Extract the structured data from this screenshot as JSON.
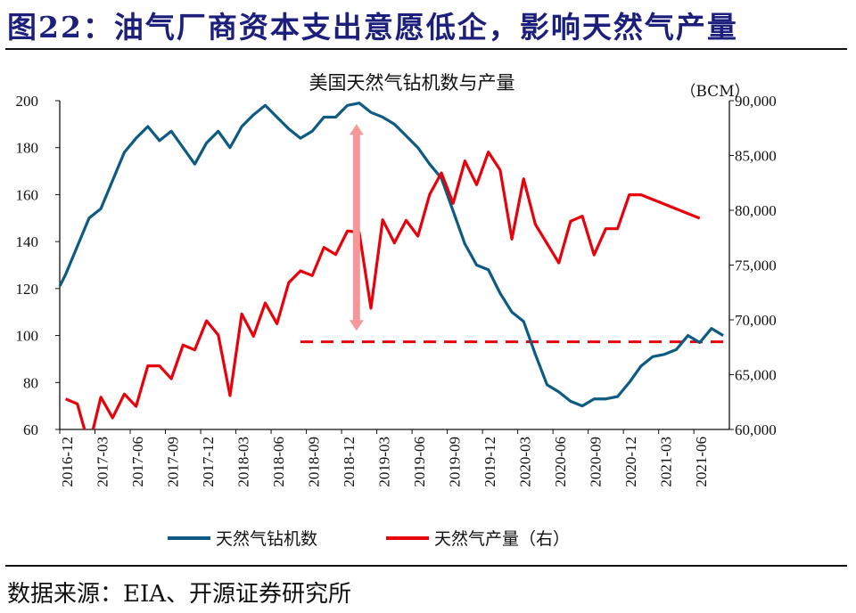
{
  "figure_title": "图22：油气厂商资本支出意愿低企，影响天然气产量",
  "source": "数据来源：EIA、开源证券研究所",
  "colors": {
    "rigs": "#0d5b82",
    "production": "#e8000b",
    "arrow": "#f4989a",
    "title": "#1c1f7c"
  },
  "chart_data": {
    "type": "line",
    "title": "美国天然气钻机数与产量",
    "right_unit": "（BCM）",
    "start_month": "2016-12",
    "x_tick_labels": [
      "2016-12",
      "2017-03",
      "2017-06",
      "2017-09",
      "2017-12",
      "2018-03",
      "2018-06",
      "2018-09",
      "2018-12",
      "2019-03",
      "2019-06",
      "2019-09",
      "2019-12",
      "2020-03",
      "2020-06",
      "2020-09",
      "2020-12",
      "2021-03",
      "2021-06"
    ],
    "y_left": {
      "min": 60,
      "max": 200,
      "step": 20,
      "tick_labels": [
        "60",
        "80",
        "100",
        "120",
        "140",
        "160",
        "180",
        "200"
      ]
    },
    "y_right": {
      "min": 60000,
      "max": 90000,
      "step": 5000,
      "tick_labels": [
        "60,000",
        "65,000",
        "70,000",
        "75,000",
        "80,000",
        "85,000",
        "90,000"
      ]
    },
    "grid": false,
    "legend_position": "bottom",
    "series": [
      {
        "name": "天然气钻机数",
        "axis": "left",
        "values": [
          126,
          138,
          150,
          154,
          166,
          178,
          184,
          189,
          183,
          187,
          180,
          173,
          182,
          187,
          180,
          189,
          194,
          198,
          193,
          188,
          184,
          187,
          193,
          193,
          198,
          199,
          195,
          193,
          190,
          185,
          180,
          173,
          167,
          153,
          139,
          130,
          128,
          118,
          110,
          106,
          92,
          79,
          76,
          72,
          70,
          73,
          73,
          74,
          80,
          87,
          91,
          92,
          94,
          100,
          97,
          103,
          100
        ]
      },
      {
        "name": "天然气产量（右）",
        "axis": "right",
        "values": [
          62790,
          62330,
          58500,
          62950,
          61060,
          63230,
          62110,
          65800,
          65800,
          64630,
          67700,
          67260,
          69920,
          68620,
          63090,
          70540,
          68510,
          71540,
          69650,
          73390,
          74470,
          74040,
          76610,
          75960,
          78110,
          77990,
          71060,
          79130,
          77020,
          79080,
          77640,
          81440,
          83410,
          80630,
          84500,
          82330,
          85310,
          83680,
          77370,
          82870,
          78720,
          76960,
          75200,
          79000,
          79460,
          75930,
          78320,
          78320,
          81410,
          81410,
          null,
          null,
          null,
          null,
          79270
        ]
      }
    ],
    "reference_line": {
      "axis": "right",
      "value": 68000,
      "start_index": 20,
      "style": "dashed"
    },
    "annotation_arrow": {
      "index": 25,
      "from_left_value": 102,
      "to_left_value": 190,
      "style": "double-headed"
    }
  }
}
